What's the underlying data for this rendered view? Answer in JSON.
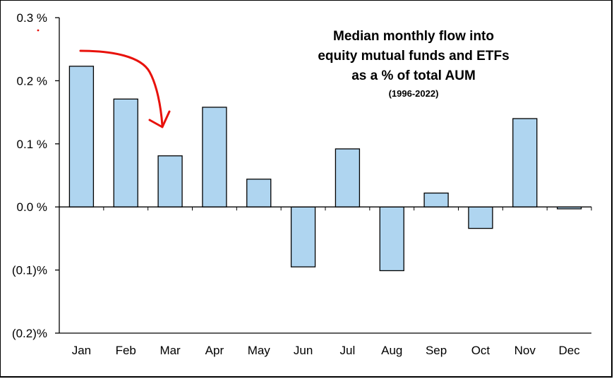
{
  "chart_data": {
    "type": "bar",
    "title_lines": [
      "Median monthly flow into",
      "equity mutual funds and ETFs",
      "as a % of total AUM"
    ],
    "subtitle": "(1996-2022)",
    "categories": [
      "Jan",
      "Feb",
      "Mar",
      "Apr",
      "May",
      "Jun",
      "Jul",
      "Aug",
      "Sep",
      "Oct",
      "Nov",
      "Dec"
    ],
    "values": [
      0.223,
      0.171,
      0.081,
      0.158,
      0.044,
      -0.095,
      0.092,
      -0.101,
      0.022,
      -0.034,
      0.14,
      -0.003
    ],
    "ylim": [
      -0.2,
      0.3
    ],
    "yticks": [
      0.3,
      0.2,
      0.1,
      0.0,
      -0.1,
      -0.2
    ],
    "ytick_labels": [
      "0.3 %",
      "0.2 %",
      "0.1 %",
      "0.0 %",
      "(0.1)%",
      "(0.2)%"
    ],
    "xlabel": "",
    "ylabel": "",
    "grid": false,
    "legend": "none",
    "bar_color": "#afd5f0",
    "bar_edge_color": "#000000",
    "annotation": {
      "type": "arrow",
      "color": "#e8120c",
      "from_category": "Jan",
      "to_category": "Mar"
    }
  }
}
